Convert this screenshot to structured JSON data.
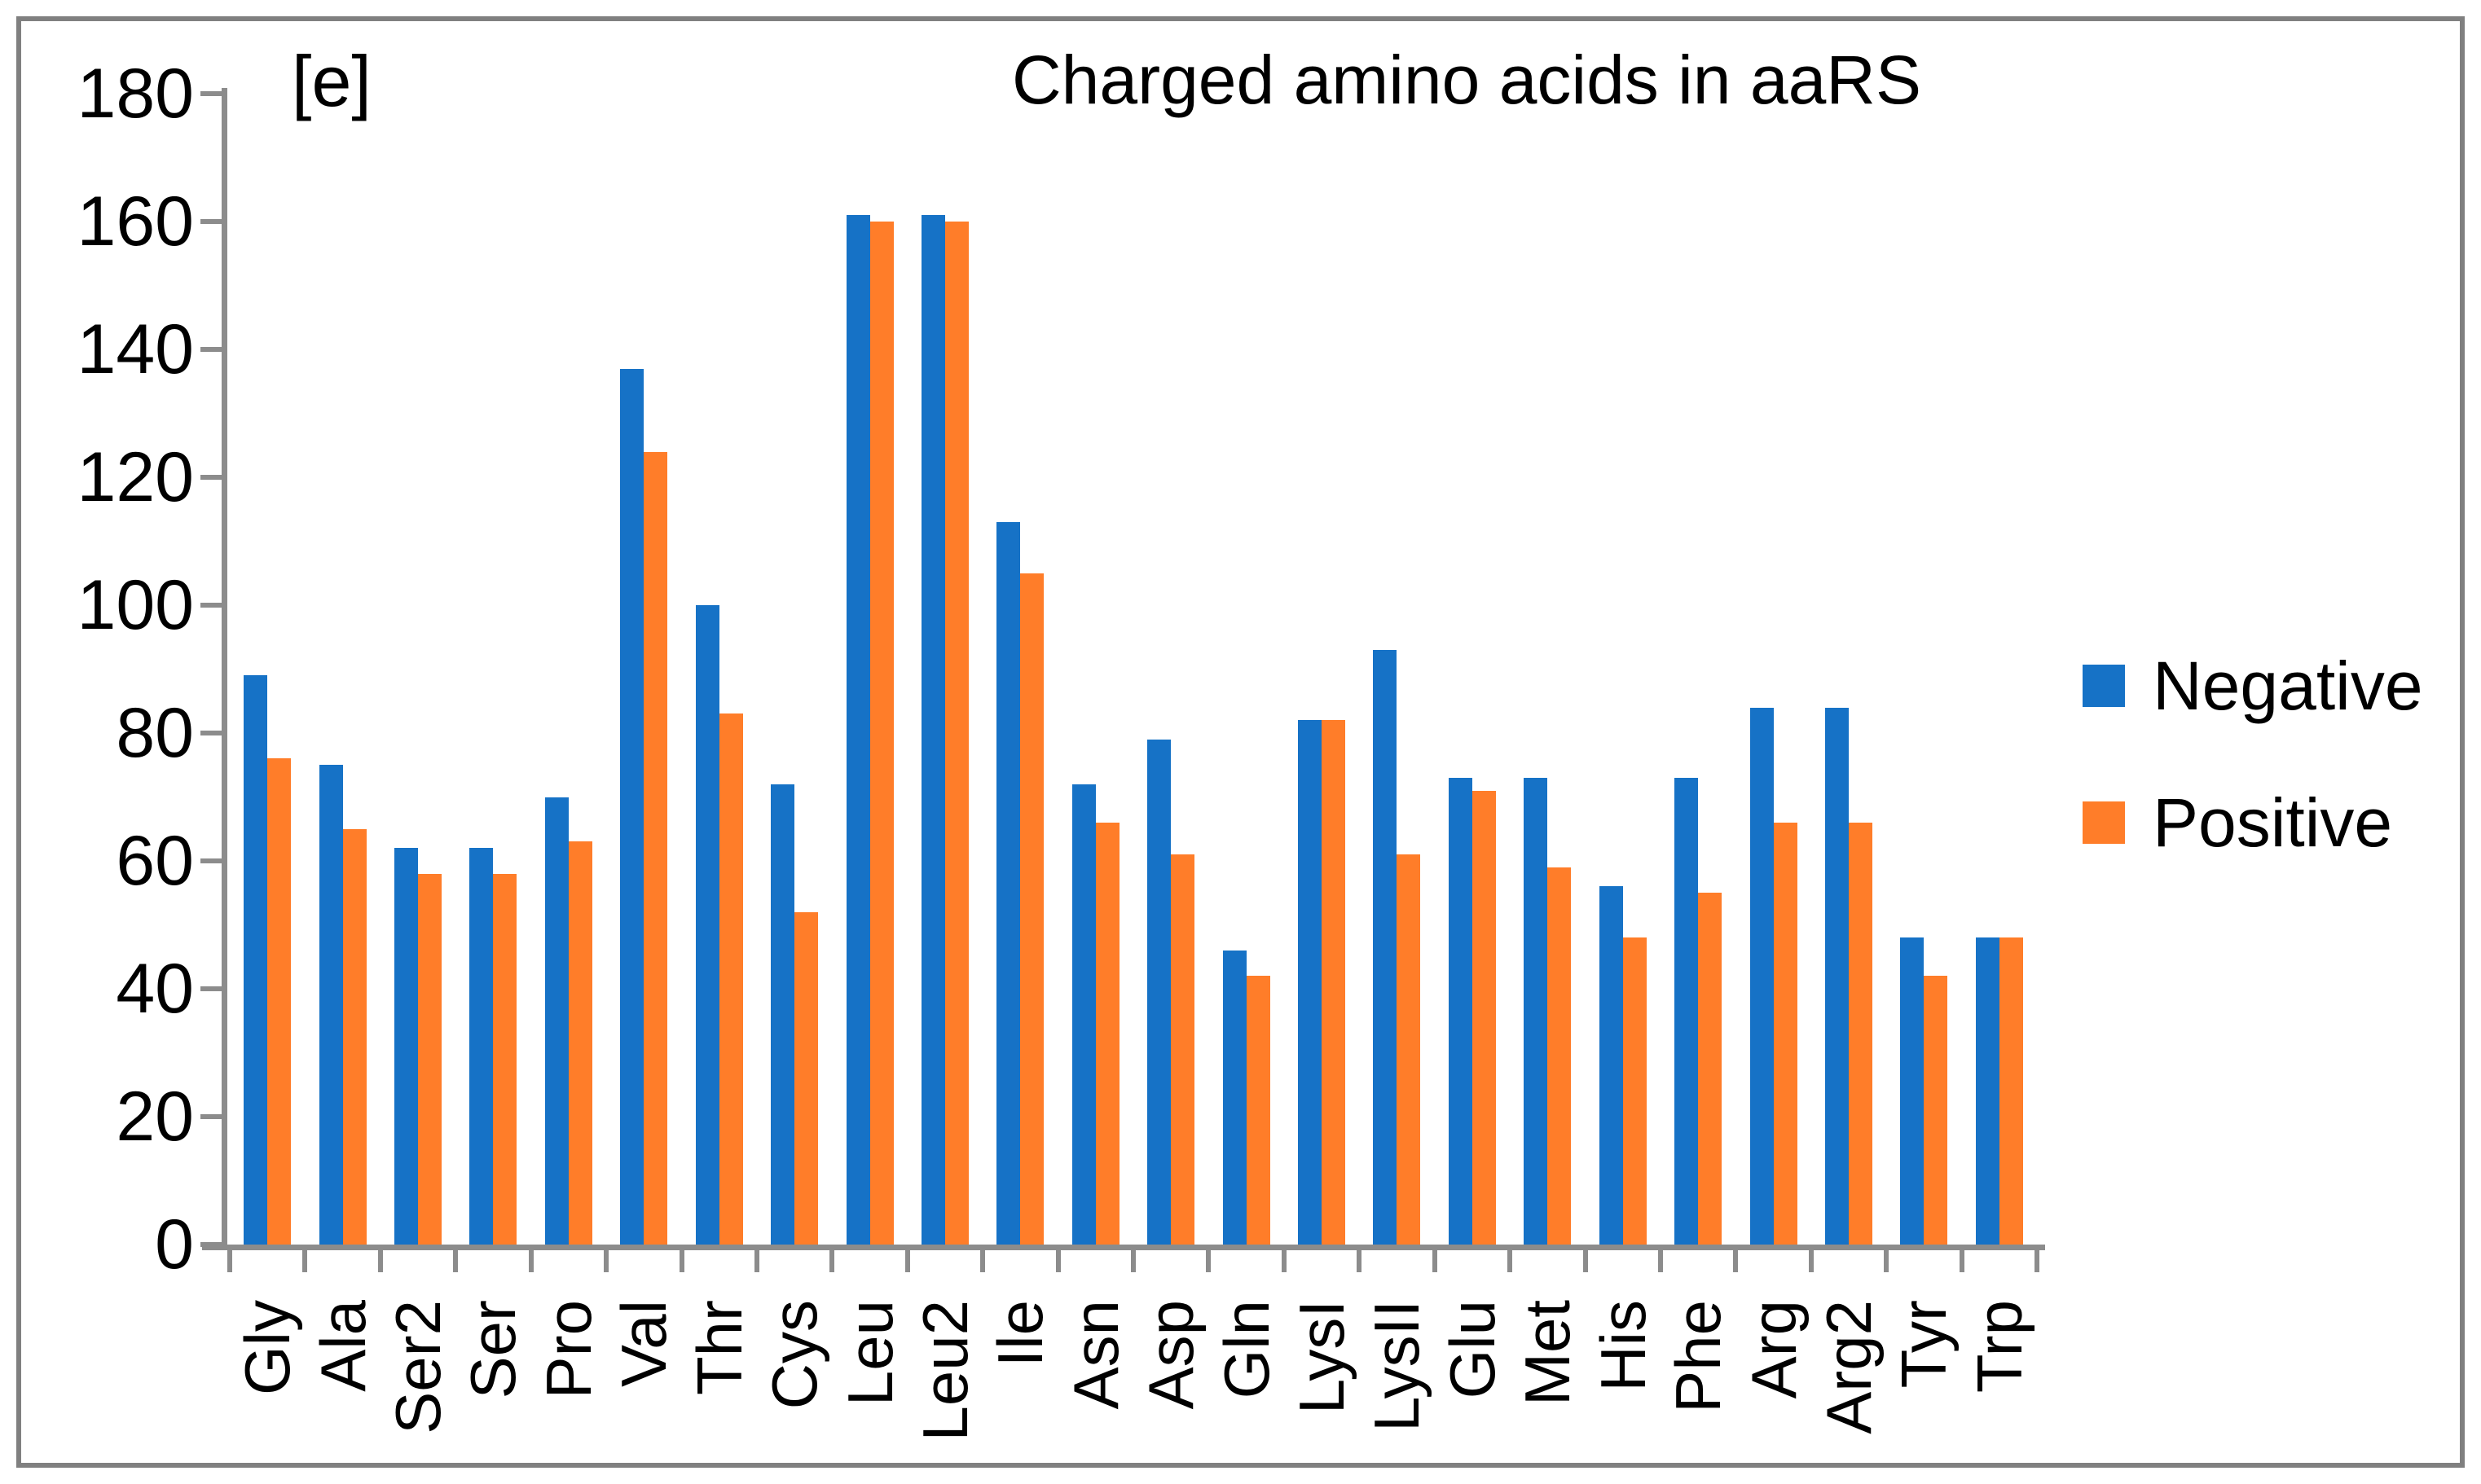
{
  "chart_data": {
    "type": "bar",
    "title": "Charged amino acids in aaRS",
    "annotation": "[e]",
    "xlabel": "",
    "ylabel": "",
    "ylim": [
      0,
      180
    ],
    "ytick_step": 20,
    "ytick_labels": [
      "0",
      "20",
      "40",
      "60",
      "80",
      "100",
      "120",
      "140",
      "160",
      "180"
    ],
    "grid": "off",
    "legend_position": "right",
    "categories": [
      "Gly",
      "Ala",
      "Ser2",
      "Ser",
      "Pro",
      "Val",
      "Thr",
      "Cys",
      "Leu",
      "Leu2",
      "Ile",
      "Asn",
      "Asp",
      "Gln",
      "LysI",
      "LysII",
      "Glu",
      "Met",
      "His",
      "Phe",
      "Arg",
      "Arg2",
      "Tyr",
      "Trp"
    ],
    "series": [
      {
        "name": "Negative",
        "color": "#1672C6",
        "values": [
          89,
          75,
          62,
          62,
          70,
          137,
          100,
          72,
          161,
          161,
          113,
          72,
          79,
          46,
          82,
          93,
          73,
          73,
          56,
          73,
          84,
          84,
          48,
          48
        ]
      },
      {
        "name": "Positive",
        "color": "#FF7D29",
        "values": [
          76,
          65,
          58,
          58,
          63,
          124,
          83,
          52,
          160,
          160,
          105,
          66,
          61,
          42,
          82,
          61,
          71,
          59,
          48,
          55,
          66,
          66,
          42,
          48
        ]
      }
    ],
    "colors": {
      "frame": "#808080",
      "axis": "#8C8C8C",
      "background": "#FFFFFF"
    }
  }
}
